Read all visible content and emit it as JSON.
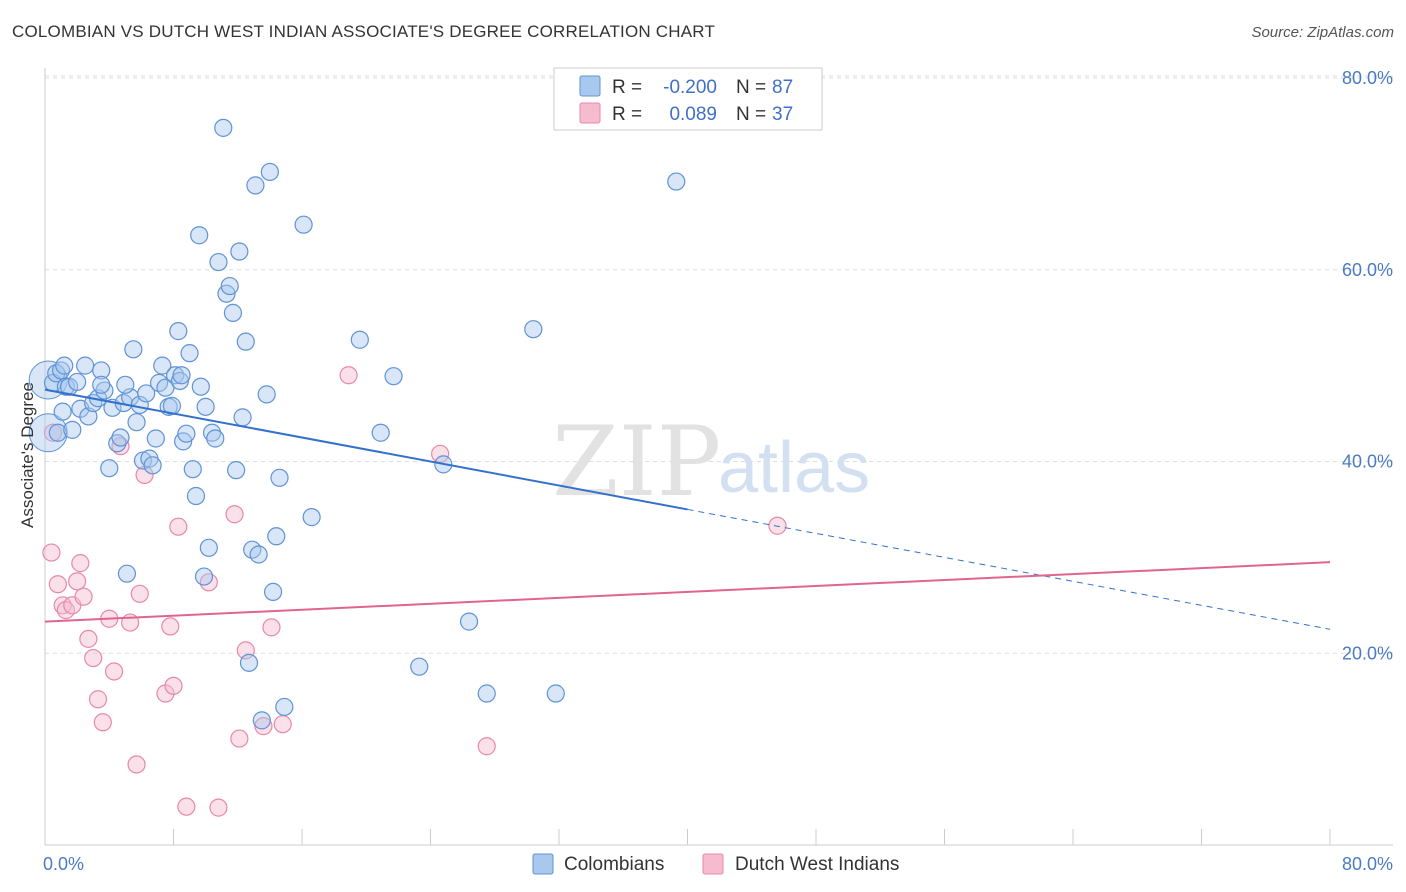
{
  "title": "COLOMBIAN VS DUTCH WEST INDIAN ASSOCIATE'S DEGREE CORRELATION CHART",
  "source": "Source: ZipAtlas.com",
  "watermark": {
    "zip": "ZIP",
    "atlas": "atlas"
  },
  "colors": {
    "colombians_fill": "#a9c8ee",
    "colombians_stroke": "#5f93d6",
    "colombians_line": "#3371cc",
    "dutch_fill": "#f5bccf",
    "dutch_stroke": "#e888a8",
    "dutch_line": "#e0648f",
    "grid": "#dddddd",
    "tick_text": "#4a7bc4"
  },
  "legend": {
    "rows": [
      {
        "r_label": "R =",
        "r_value": "-0.200",
        "n_label": "N =",
        "n_value": "87"
      },
      {
        "r_label": "R =",
        "r_value": "0.089",
        "n_label": "N =",
        "n_value": "37"
      }
    ]
  },
  "chart_data": {
    "type": "scatter",
    "xlabel": "",
    "ylabel": "Associate's Degree",
    "xlim": [
      0,
      0.8
    ],
    "ylim": [
      0,
      0.8
    ],
    "x_tick_labels": [
      "0.0%",
      "80.0%"
    ],
    "y_ticks": [
      0.2,
      0.4,
      0.6,
      0.8
    ],
    "y_tick_labels": [
      "20.0%",
      "40.0%",
      "60.0%",
      "80.0%"
    ],
    "legend_position": "bottom",
    "grid": true,
    "series": [
      {
        "name": "Colombians",
        "trend": {
          "x0": 0.0,
          "y0": 0.475,
          "x1": 0.4,
          "y1": 0.35,
          "dash_x1": 0.8,
          "dash_y1": 0.225
        },
        "points": [
          [
            0.005,
            0.482
          ],
          [
            0.007,
            0.492
          ],
          [
            0.008,
            0.43
          ],
          [
            0.01,
            0.495
          ],
          [
            0.012,
            0.5
          ],
          [
            0.013,
            0.478
          ],
          [
            0.015,
            0.478
          ],
          [
            0.017,
            0.433
          ],
          [
            0.02,
            0.483
          ],
          [
            0.022,
            0.455
          ],
          [
            0.025,
            0.5
          ],
          [
            0.027,
            0.447
          ],
          [
            0.03,
            0.461
          ],
          [
            0.033,
            0.466
          ],
          [
            0.035,
            0.495
          ],
          [
            0.037,
            0.474
          ],
          [
            0.04,
            0.393
          ],
          [
            0.042,
            0.456
          ],
          [
            0.045,
            0.419
          ],
          [
            0.047,
            0.425
          ],
          [
            0.049,
            0.461
          ],
          [
            0.051,
            0.283
          ],
          [
            0.053,
            0.467
          ],
          [
            0.055,
            0.517
          ],
          [
            0.057,
            0.441
          ],
          [
            0.059,
            0.459
          ],
          [
            0.061,
            0.401
          ],
          [
            0.063,
            0.471
          ],
          [
            0.065,
            0.403
          ],
          [
            0.067,
            0.396
          ],
          [
            0.069,
            0.424
          ],
          [
            0.071,
            0.482
          ],
          [
            0.073,
            0.5
          ],
          [
            0.075,
            0.477
          ],
          [
            0.077,
            0.457
          ],
          [
            0.079,
            0.458
          ],
          [
            0.081,
            0.49
          ],
          [
            0.083,
            0.536
          ],
          [
            0.084,
            0.484
          ],
          [
            0.086,
            0.421
          ],
          [
            0.088,
            0.429
          ],
          [
            0.09,
            0.513
          ],
          [
            0.092,
            0.392
          ],
          [
            0.094,
            0.364
          ],
          [
            0.096,
            0.636
          ],
          [
            0.097,
            0.478
          ],
          [
            0.099,
            0.28
          ],
          [
            0.1,
            0.457
          ],
          [
            0.102,
            0.31
          ],
          [
            0.104,
            0.43
          ],
          [
            0.106,
            0.424
          ],
          [
            0.108,
            0.608
          ],
          [
            0.111,
            0.748
          ],
          [
            0.113,
            0.575
          ],
          [
            0.115,
            0.583
          ],
          [
            0.117,
            0.555
          ],
          [
            0.119,
            0.391
          ],
          [
            0.121,
            0.619
          ],
          [
            0.123,
            0.446
          ],
          [
            0.125,
            0.525
          ],
          [
            0.127,
            0.19
          ],
          [
            0.129,
            0.308
          ],
          [
            0.131,
            0.688
          ],
          [
            0.133,
            0.303
          ],
          [
            0.135,
            0.13
          ],
          [
            0.138,
            0.47
          ],
          [
            0.14,
            0.702
          ],
          [
            0.142,
            0.264
          ],
          [
            0.144,
            0.322
          ],
          [
            0.146,
            0.383
          ],
          [
            0.149,
            0.144
          ],
          [
            0.161,
            0.647
          ],
          [
            0.166,
            0.342
          ],
          [
            0.196,
            0.527
          ],
          [
            0.209,
            0.43
          ],
          [
            0.217,
            0.489
          ],
          [
            0.233,
            0.186
          ],
          [
            0.248,
            0.397
          ],
          [
            0.264,
            0.233
          ],
          [
            0.275,
            0.158
          ],
          [
            0.304,
            0.538
          ],
          [
            0.318,
            0.158
          ],
          [
            0.393,
            0.692
          ],
          [
            0.05,
            0.48
          ],
          [
            0.085,
            0.49
          ],
          [
            0.035,
            0.48
          ],
          [
            0.011,
            0.452
          ]
        ],
        "big_points": [
          [
            0.002,
            0.485
          ],
          [
            0.002,
            0.43
          ]
        ]
      },
      {
        "name": "Dutch West Indians",
        "trend": {
          "x0": 0.0,
          "y0": 0.233,
          "x1": 0.8,
          "y1": 0.295
        },
        "points": [
          [
            0.004,
            0.305
          ],
          [
            0.008,
            0.272
          ],
          [
            0.011,
            0.25
          ],
          [
            0.013,
            0.245
          ],
          [
            0.017,
            0.25
          ],
          [
            0.02,
            0.275
          ],
          [
            0.022,
            0.294
          ],
          [
            0.024,
            0.259
          ],
          [
            0.027,
            0.215
          ],
          [
            0.03,
            0.195
          ],
          [
            0.033,
            0.152
          ],
          [
            0.036,
            0.128
          ],
          [
            0.04,
            0.236
          ],
          [
            0.043,
            0.181
          ],
          [
            0.047,
            0.416
          ],
          [
            0.053,
            0.232
          ],
          [
            0.057,
            0.084
          ],
          [
            0.059,
            0.262
          ],
          [
            0.062,
            0.386
          ],
          [
            0.075,
            0.158
          ],
          [
            0.078,
            0.228
          ],
          [
            0.08,
            0.166
          ],
          [
            0.083,
            0.332
          ],
          [
            0.088,
            0.04
          ],
          [
            0.102,
            0.274
          ],
          [
            0.108,
            0.039
          ],
          [
            0.118,
            0.345
          ],
          [
            0.121,
            0.111
          ],
          [
            0.125,
            0.203
          ],
          [
            0.136,
            0.124
          ],
          [
            0.141,
            0.227
          ],
          [
            0.148,
            0.126
          ],
          [
            0.189,
            0.49
          ],
          [
            0.246,
            0.408
          ],
          [
            0.275,
            0.103
          ],
          [
            0.456,
            0.333
          ],
          [
            0.005,
            0.43
          ]
        ],
        "big_points": []
      }
    ]
  }
}
